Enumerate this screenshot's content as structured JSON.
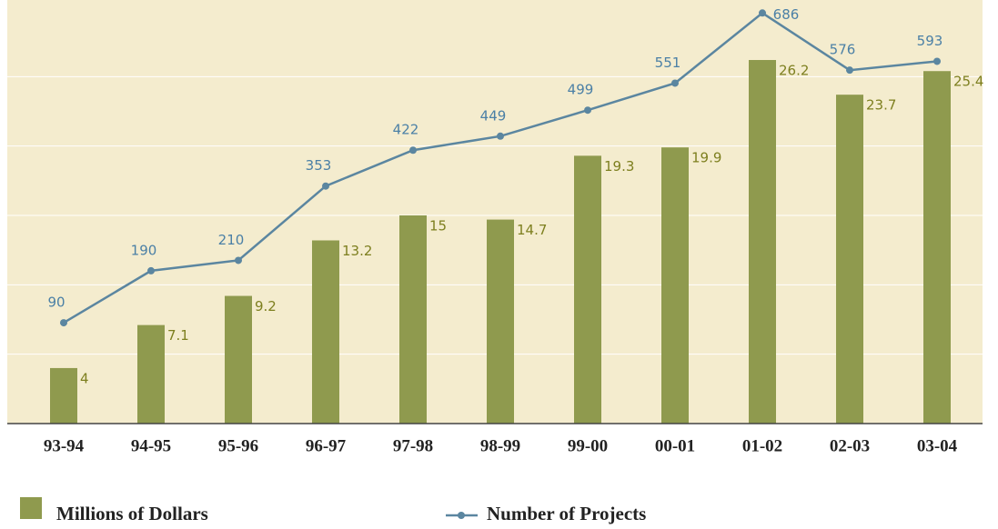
{
  "chart_data": {
    "type": "bar-line",
    "categories": [
      "93-94",
      "94-95",
      "95-96",
      "96-97",
      "97-98",
      "98-99",
      "99-00",
      "00-01",
      "01-02",
      "02-03",
      "03-04"
    ],
    "series": [
      {
        "name": "Millions of Dollars",
        "type": "bar",
        "color": "#8f9a4e",
        "values": [
          4,
          7.1,
          9.2,
          13.2,
          15,
          14.7,
          19.3,
          19.9,
          26.2,
          23.7,
          25.4
        ]
      },
      {
        "name": "Number of Projects",
        "type": "line",
        "axis": "y2",
        "color": "#5b86a0",
        "values": [
          90,
          190,
          210,
          353,
          422,
          449,
          499,
          551,
          686,
          576,
          593
        ]
      }
    ],
    "ylim": [
      0,
      30
    ],
    "ygrid": [
      5,
      10,
      15,
      20,
      25
    ],
    "y2lim": [
      -104,
      697
    ],
    "grid": true
  }
}
